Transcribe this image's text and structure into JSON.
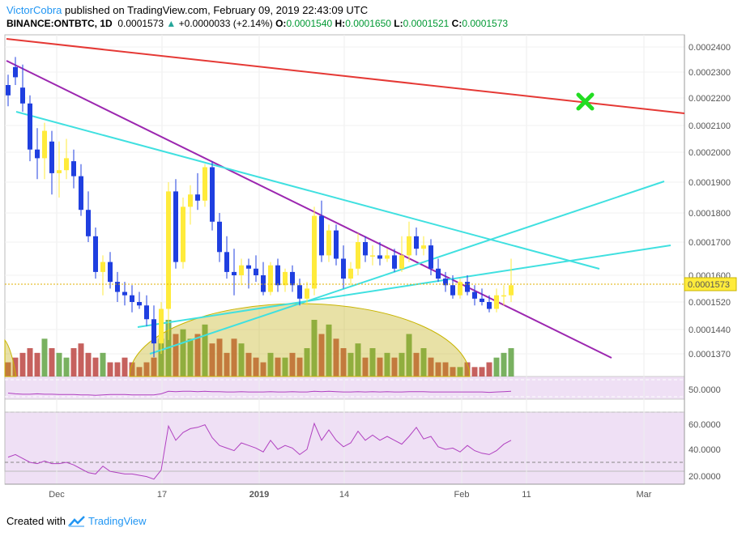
{
  "header": {
    "author": "VictorCobra",
    "published_text": "published on TradingView.com, February 09, 2019 22:43:09 UTC",
    "symbol": "BINANCE:ONTBTC, 1D",
    "last": "0.0001573",
    "change_icon": "triangle-up-icon",
    "change": "+0.0000033 (+2.14%)",
    "o_label": "O:",
    "o_value": "0.0001540",
    "h_label": "H:",
    "h_value": "0.0001650",
    "l_label": "L:",
    "l_value": "0.0001521",
    "c_label": "C:",
    "c_value": "0.0001573"
  },
  "footer": {
    "created_with": "Created with",
    "brand": "TradingView",
    "logo_icon": "tradingview-logo-icon"
  },
  "colors": {
    "bull": "#ffeb3b",
    "bear": "#1f3fe0",
    "vol_up": "#6aa84f",
    "vol_down": "#c0504d",
    "red_line": "#e53935",
    "purple_line": "#9c27b0",
    "cyan_line": "#40e0e0",
    "cross": "#22dd22",
    "rsi": "#b040c0",
    "rsi_bg": "#efe0f5"
  },
  "chart_data": {
    "type": "candlestick",
    "price_ticks": [
      "0.0002400",
      "0.0002300",
      "0.0002200",
      "0.0002100",
      "0.0002000",
      "0.0001900",
      "0.0001800",
      "0.0001700",
      "0.0001600",
      "0.0001520",
      "0.0001440",
      "0.0001370"
    ],
    "current_price_label": "0.0001573",
    "x_ticks": [
      "Dec",
      "17",
      "2019",
      "14",
      "Feb",
      "11",
      "Mar"
    ],
    "rsi_top_ticks": [
      "50.0000"
    ],
    "rsi_bottom_ticks": [
      "60.0000",
      "40.0000",
      "20.0000"
    ],
    "candles": [
      [
        0.000225,
        0.000229,
        0.000217,
        0.000221
      ],
      [
        0.000232,
        0.000236,
        0.000225,
        0.000228
      ],
      [
        0.000224,
        0.000233,
        0.000215,
        0.000218
      ],
      [
        0.000218,
        0.000221,
        0.000197,
        0.000201
      ],
      [
        0.000201,
        0.000209,
        0.000191,
        0.000198
      ],
      [
        0.000198,
        0.000211,
        0.000191,
        0.000208
      ],
      [
        0.000204,
        0.000208,
        0.000186,
        0.000193
      ],
      [
        0.000193,
        0.000204,
        0.000185,
        0.000194
      ],
      [
        0.000194,
        0.000205,
        0.000191,
        0.000198
      ],
      [
        0.000197,
        0.000201,
        0.000188,
        0.000192
      ],
      [
        0.000192,
        0.000196,
        0.000179,
        0.000181
      ],
      [
        0.000181,
        0.000187,
        0.00017,
        0.000172
      ],
      [
        0.000172,
        0.000175,
        0.000159,
        0.000161
      ],
      [
        0.000161,
        0.000166,
        0.000154,
        0.000164
      ],
      [
        0.000164,
        0.000167,
        0.000156,
        0.000158
      ],
      [
        0.000158,
        0.000161,
        0.000152,
        0.000155
      ],
      [
        0.000155,
        0.000158,
        0.000151,
        0.000154
      ],
      [
        0.000154,
        0.000157,
        0.000149,
        0.000152
      ],
      [
        0.000152,
        0.000155,
        0.00015,
        0.000151
      ],
      [
        0.000151,
        0.000154,
        0.000145,
        0.000147
      ],
      [
        0.000147,
        0.000151,
        0.000136,
        0.00014
      ],
      [
        0.00014,
        0.000152,
        0.000137,
        0.00015
      ],
      [
        0.00015,
        0.00019,
        0.000141,
        0.000187
      ],
      [
        0.000187,
        0.000191,
        0.000162,
        0.000164
      ],
      [
        0.000164,
        0.000185,
        0.000162,
        0.000182
      ],
      [
        0.000182,
        0.000189,
        0.000176,
        0.000186
      ],
      [
        0.000186,
        0.000193,
        0.000181,
        0.000184
      ],
      [
        0.000184,
        0.000196,
        0.000182,
        0.000195
      ],
      [
        0.000195,
        0.000197,
        0.000174,
        0.000177
      ],
      [
        0.000177,
        0.00018,
        0.000164,
        0.000167
      ],
      [
        0.000167,
        0.000172,
        0.000159,
        0.000161
      ],
      [
        0.000161,
        0.000168,
        0.000154,
        0.00016
      ],
      [
        0.00016,
        0.000165,
        0.000157,
        0.000163
      ],
      [
        0.000163,
        0.000165,
        0.000156,
        0.000162
      ],
      [
        0.000162,
        0.000166,
        0.000158,
        0.00016
      ],
      [
        0.00016,
        0.000164,
        0.000154,
        0.000155
      ],
      [
        0.000155,
        0.000164,
        0.000154,
        0.000163
      ],
      [
        0.000163,
        0.000165,
        0.000155,
        0.000157
      ],
      [
        0.000157,
        0.000162,
        0.000155,
        0.000161
      ],
      [
        0.000161,
        0.000163,
        0.000155,
        0.000157
      ],
      [
        0.000157,
        0.000159,
        0.000151,
        0.000153
      ],
      [
        0.000153,
        0.000158,
        0.000151,
        0.000156
      ],
      [
        0.000156,
        0.000182,
        0.000154,
        0.000179
      ],
      [
        0.000179,
        0.000184,
        0.000164,
        0.000166
      ],
      [
        0.000166,
        0.000176,
        0.000164,
        0.000174
      ],
      [
        0.000174,
        0.000176,
        0.000163,
        0.000165
      ],
      [
        0.000165,
        0.000169,
        0.000156,
        0.000159
      ],
      [
        0.000159,
        0.000164,
        0.000157,
        0.000162
      ],
      [
        0.000162,
        0.000173,
        0.00016,
        0.00017
      ],
      [
        0.00017,
        0.000172,
        0.000164,
        0.000166
      ],
      [
        0.000166,
        0.000169,
        0.000163,
        0.000166
      ],
      [
        0.000166,
        0.00017,
        0.000163,
        0.000165
      ],
      [
        0.000165,
        0.000168,
        0.000164,
        0.000166
      ],
      [
        0.000166,
        0.000168,
        0.000161,
        0.000162
      ],
      [
        0.000162,
        0.000172,
        0.000161,
        0.000166
      ],
      [
        0.000166,
        0.000177,
        0.000164,
        0.000172
      ],
      [
        0.000172,
        0.000175,
        0.000166,
        0.000168
      ],
      [
        0.000168,
        0.000172,
        0.000166,
        0.000169
      ],
      [
        0.000169,
        0.000171,
        0.00016,
        0.000162
      ],
      [
        0.000162,
        0.000165,
        0.000158,
        0.000159
      ],
      [
        0.000159,
        0.000161,
        0.000155,
        0.000157
      ],
      [
        0.000157,
        0.00016,
        0.000153,
        0.000154
      ],
      [
        0.000154,
        0.000159,
        0.000153,
        0.000158
      ],
      [
        0.000158,
        0.00016,
        0.000154,
        0.000155
      ],
      [
        0.000155,
        0.000157,
        0.000151,
        0.000153
      ],
      [
        0.000153,
        0.000156,
        0.000151,
        0.000152
      ],
      [
        0.000152,
        0.000154,
        0.000149,
        0.00015
      ],
      [
        0.00015,
        0.000156,
        0.000149,
        0.000154
      ],
      [
        0.000154,
        0.000157,
        0.000151,
        0.000154
      ],
      [
        0.000154,
        0.000165,
        0.000152,
        0.000157
      ]
    ],
    "volume": [
      3,
      4,
      5,
      6,
      5,
      8,
      6,
      5,
      4,
      6,
      7,
      5,
      4,
      5,
      3,
      3,
      4,
      3,
      2,
      3,
      4,
      8,
      12,
      9,
      10,
      8,
      9,
      11,
      7,
      8,
      5,
      8,
      7,
      5,
      4,
      3,
      5,
      4,
      4,
      5,
      4,
      6,
      12,
      9,
      11,
      8,
      6,
      5,
      7,
      4,
      6,
      4,
      5,
      4,
      5,
      9,
      5,
      6,
      4,
      3,
      3,
      2,
      2,
      3,
      2,
      2,
      3,
      4,
      5,
      6
    ],
    "rsi_top": [
      40,
      38,
      37,
      37,
      38,
      37,
      37,
      36,
      36,
      36,
      35,
      35,
      34,
      35,
      36,
      36,
      36,
      35,
      35,
      35,
      35,
      38,
      45,
      44,
      45,
      45,
      44,
      45,
      44,
      44,
      43,
      43,
      44,
      43,
      43,
      43,
      44,
      43,
      43,
      44,
      43,
      43,
      45,
      44,
      45,
      44,
      43,
      43,
      44,
      43,
      44,
      43,
      44,
      43,
      43,
      44,
      44,
      44,
      43,
      43,
      43,
      43,
      43,
      43,
      43,
      43,
      42,
      43,
      44,
      45
    ],
    "rsi_bottom": [
      34,
      36,
      33,
      30,
      29,
      31,
      29,
      29,
      30,
      28,
      25,
      22,
      21,
      27,
      23,
      22,
      21,
      21,
      20,
      19,
      17,
      24,
      58,
      47,
      53,
      56,
      57,
      59,
      49,
      43,
      41,
      39,
      45,
      43,
      41,
      38,
      47,
      40,
      43,
      41,
      36,
      40,
      60,
      47,
      55,
      47,
      42,
      45,
      54,
      47,
      51,
      47,
      50,
      47,
      44,
      50,
      57,
      48,
      50,
      42,
      40,
      41,
      38,
      43,
      39,
      37,
      36,
      39,
      44,
      47
    ]
  }
}
